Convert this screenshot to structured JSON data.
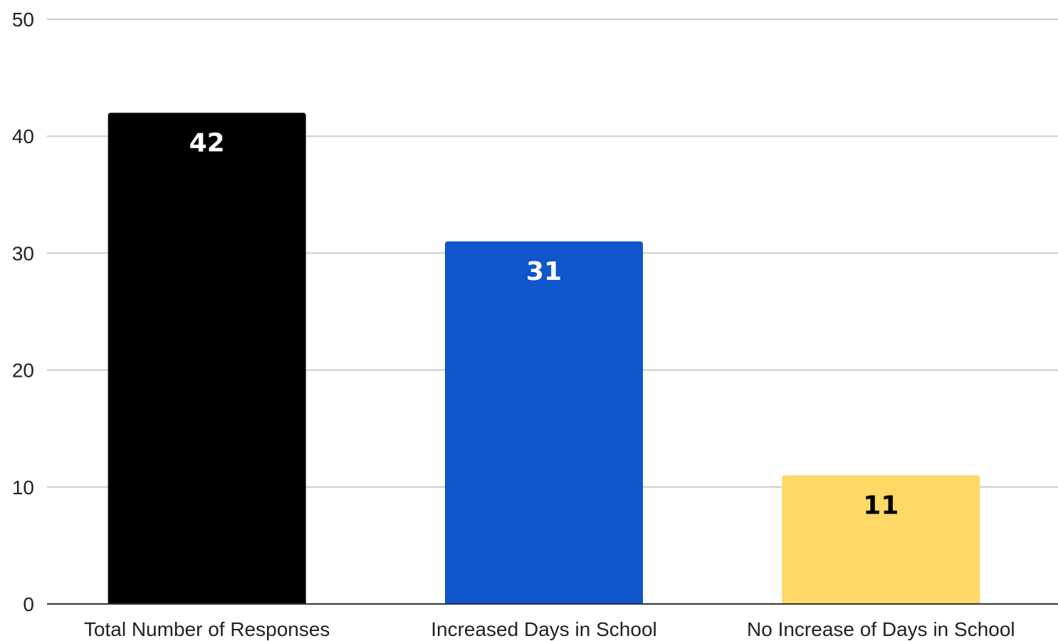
{
  "chart_data": {
    "type": "bar",
    "title": "",
    "xlabel": "",
    "ylabel": "",
    "categories": [
      "Total Number of Responses",
      "Increased Days in School",
      "No Increase of Days in School"
    ],
    "values": [
      42,
      31,
      11
    ],
    "value_labels": [
      "42",
      "31",
      "11"
    ],
    "bar_colors": [
      "#000000",
      "#1155cc",
      "#ffd966"
    ],
    "label_colors": [
      "#ffffff",
      "#ffffff",
      "#000000"
    ],
    "ylim": [
      0,
      50
    ],
    "yticks": [
      0,
      10,
      20,
      30,
      40,
      50
    ],
    "ytick_labels": [
      "0",
      "10",
      "20",
      "30",
      "40",
      "50"
    ],
    "grid": true,
    "gridline_color": "#cccccc",
    "axis_color": "#333333",
    "legend": "none",
    "data_labels": "inside-top"
  }
}
